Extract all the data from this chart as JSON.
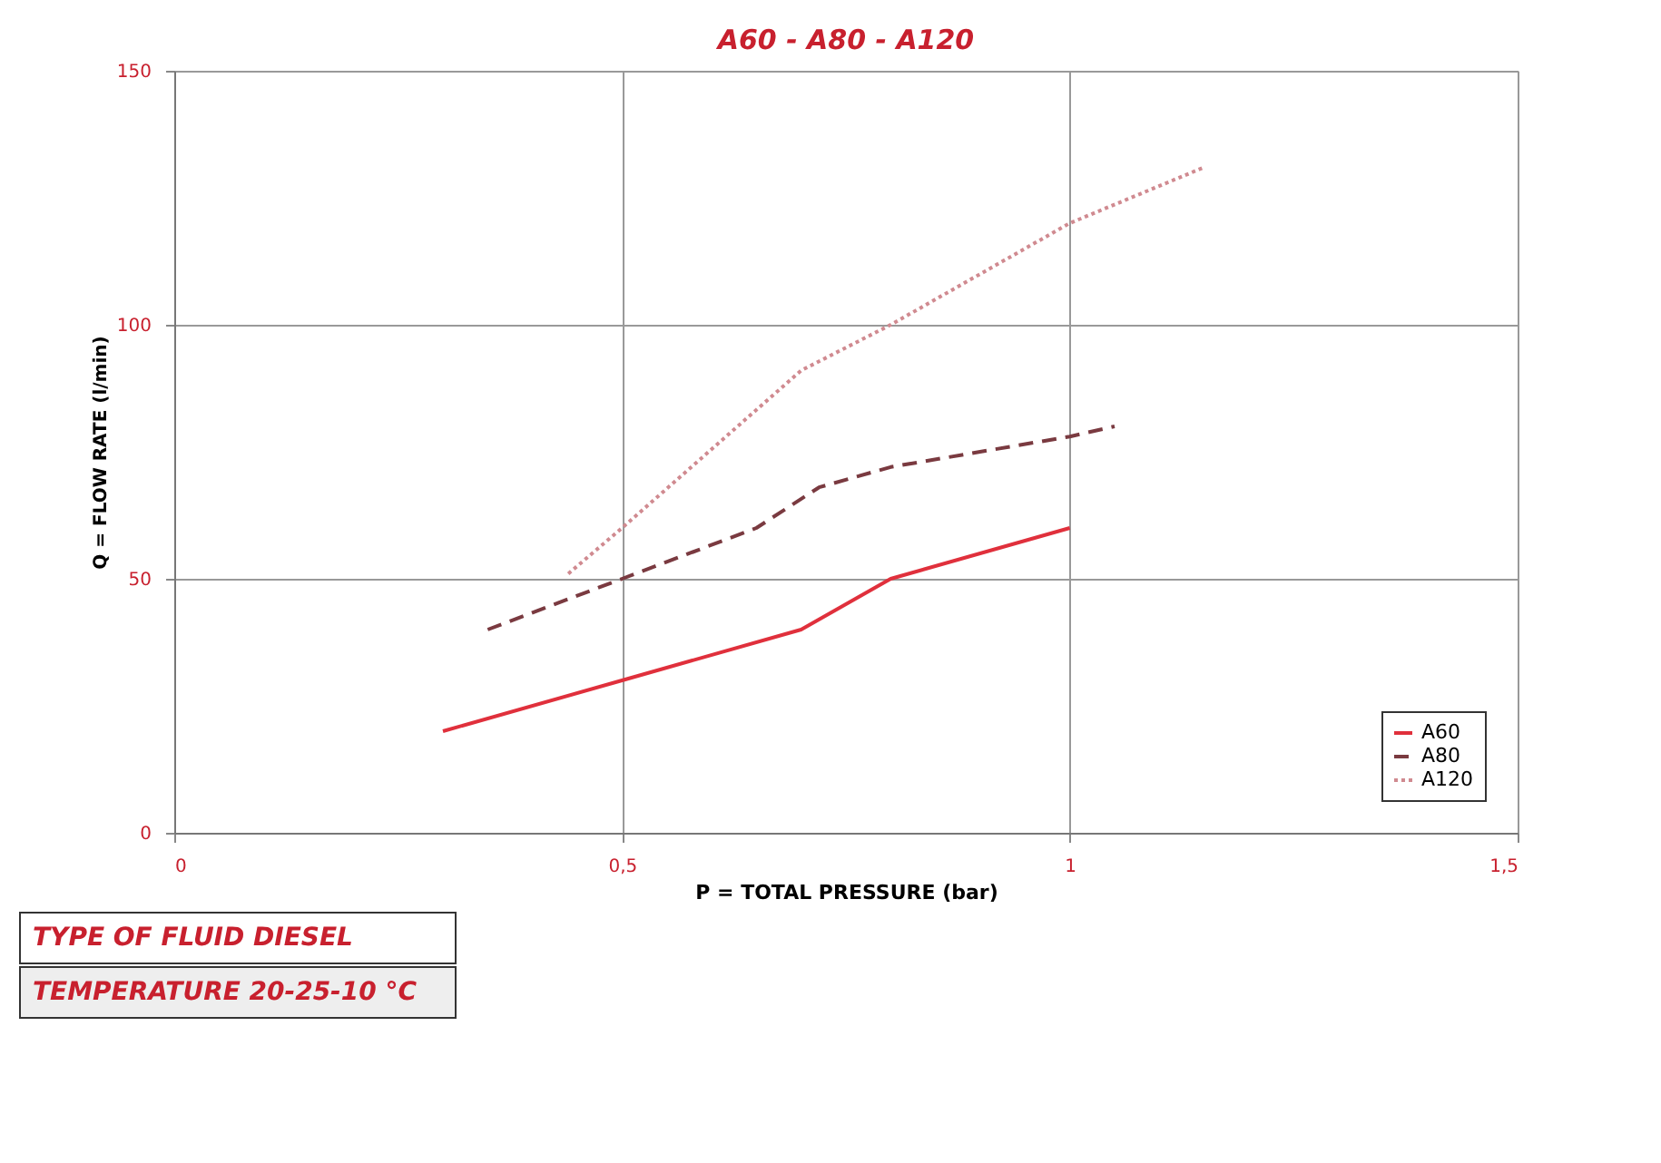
{
  "chart_data": {
    "type": "line",
    "title": "A60 - A80 - A120",
    "xlabel": "P = TOTAL PRESSURE (bar)",
    "ylabel": "Q = FLOW RATE (l/min)",
    "series": [
      {
        "name": "A60",
        "color": "#e0303c",
        "line_style": "solid",
        "x": [
          0.3,
          0.5,
          0.7,
          0.8,
          1.0
        ],
        "values": [
          20,
          30,
          40,
          50,
          60
        ]
      },
      {
        "name": "A80",
        "color": "#7a3a40",
        "line_style": "dashed",
        "x": [
          0.35,
          0.5,
          0.65,
          0.72,
          0.8,
          1.0,
          1.05
        ],
        "values": [
          40,
          50,
          60,
          68,
          72,
          78,
          80
        ]
      },
      {
        "name": "A120",
        "color": "#d08a90",
        "line_style": "dotted",
        "x": [
          0.44,
          0.5,
          0.7,
          0.8,
          1.0,
          1.15
        ],
        "values": [
          51,
          60,
          91,
          100,
          120,
          131
        ]
      }
    ],
    "xlim": [
      0,
      1.5
    ],
    "xticks": [
      0,
      {
        "value": 0.5,
        "label": "0,5"
      },
      1,
      {
        "value": 1.5,
        "label": "1,5"
      }
    ],
    "ylim": [
      0,
      150
    ],
    "yticks": [
      0,
      50,
      100,
      150
    ],
    "grid": true,
    "legend": "bottom right",
    "marker": "none",
    "annotations": [
      "TYPE OF FLUID DIESEL",
      "TEMPERATURE 20-25-10 °C"
    ]
  }
}
